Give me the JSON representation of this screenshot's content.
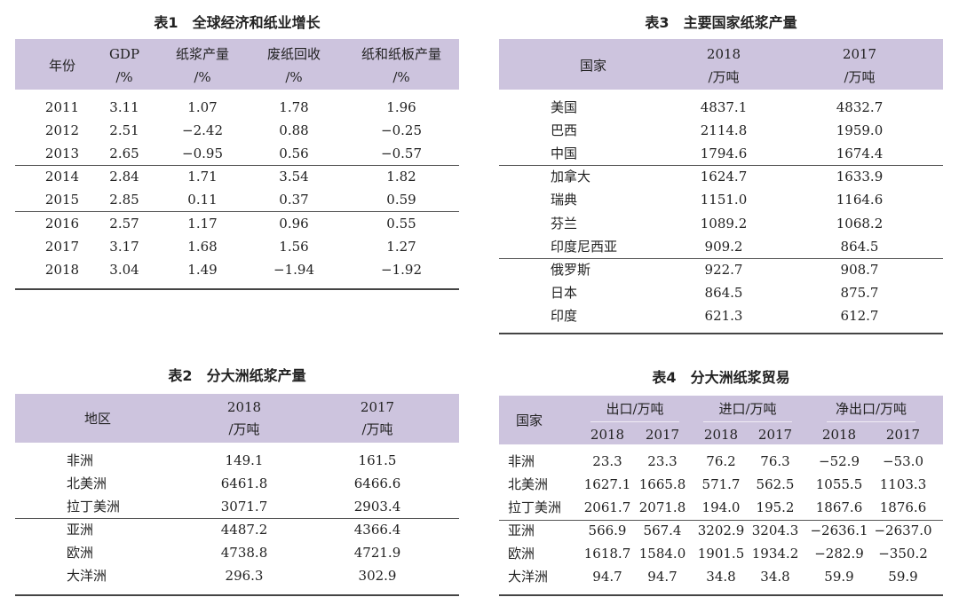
{
  "table1": {
    "title": "表1　全球经济和纸业增长",
    "headers": [
      [
        "年份",
        ""
      ],
      [
        "GDP",
        "/%"
      ],
      [
        "纸浆产量",
        "/%"
      ],
      [
        "废纸回收",
        "/%"
      ],
      [
        "纸和纸板产量",
        "/%"
      ]
    ],
    "rows": [
      [
        "2011",
        "3.11",
        "1.07",
        "1.78",
        "1.96"
      ],
      [
        "2012",
        "2.51",
        "−2.42",
        "0.88",
        "−0.25"
      ],
      [
        "2013",
        "2.65",
        "−0.95",
        "0.56",
        "−0.57"
      ],
      [
        "2014",
        "2.84",
        "1.71",
        "3.54",
        "1.82"
      ],
      [
        "2015",
        "2.85",
        "0.11",
        "0.37",
        "0.59"
      ],
      [
        "2016",
        "2.57",
        "1.17",
        "0.96",
        "0.55"
      ],
      [
        "2017",
        "3.17",
        "1.68",
        "1.56",
        "1.27"
      ],
      [
        "2018",
        "3.04",
        "1.49",
        "−1.94",
        "−1.92"
      ]
    ]
  },
  "table2": {
    "title": "表2　分大洲纸浆产量",
    "headers": [
      [
        "地区",
        ""
      ],
      [
        "2018",
        "/万吨"
      ],
      [
        "2017",
        "/万吨"
      ]
    ],
    "rows": [
      [
        "非洲",
        "149.1",
        "161.5"
      ],
      [
        "北美洲",
        "6461.8",
        "6466.6"
      ],
      [
        "拉丁美洲",
        "3071.7",
        "2903.4"
      ],
      [
        "亚洲",
        "4487.2",
        "4366.4"
      ],
      [
        "欧洲",
        "4738.8",
        "4721.9"
      ],
      [
        "大洋洲",
        "296.3",
        "302.9"
      ]
    ]
  },
  "table3": {
    "title": "表3　主要国家纸浆产量",
    "headers": [
      [
        "国家",
        ""
      ],
      [
        "2018",
        "/万吨"
      ],
      [
        "2017",
        "/万吨"
      ]
    ],
    "rows": [
      [
        "美国",
        "4837.1",
        "4832.7"
      ],
      [
        "巴西",
        "2114.8",
        "1959.0"
      ],
      [
        "中国",
        "1794.6",
        "1674.4"
      ],
      [
        "加拿大",
        "1624.7",
        "1633.9"
      ],
      [
        "瑞典",
        "1151.0",
        "1164.6"
      ],
      [
        "芬兰",
        "1089.2",
        "1068.2"
      ],
      [
        "印度尼西亚",
        "909.2",
        "864.5"
      ],
      [
        "俄罗斯",
        "922.7",
        "908.7"
      ],
      [
        "日本",
        "864.5",
        "875.7"
      ],
      [
        "印度",
        "621.3",
        "612.7"
      ]
    ]
  },
  "table4": {
    "title": "表4　分大洲纸浆贸易",
    "first_header": "国家",
    "groups": [
      "出口/万吨",
      "进口/万吨",
      "净出口/万吨"
    ],
    "years": [
      "2018",
      "2017",
      "2018",
      "2017",
      "2018",
      "2017"
    ],
    "rows": [
      [
        "非洲",
        "23.3",
        "23.3",
        "76.2",
        "76.3",
        "−52.9",
        "−53.0"
      ],
      [
        "北美洲",
        "1627.1",
        "1665.8",
        "571.7",
        "562.5",
        "1055.5",
        "1103.3"
      ],
      [
        "拉丁美洲",
        "2061.7",
        "2071.8",
        "194.0",
        "195.2",
        "1867.6",
        "1876.6"
      ],
      [
        "亚洲",
        "566.9",
        "567.4",
        "3202.9",
        "3204.3",
        "−2636.1",
        "−2637.0"
      ],
      [
        "欧洲",
        "1618.7",
        "1584.0",
        "1901.5",
        "1934.2",
        "−282.9",
        "−350.2"
      ],
      [
        "大洋洲",
        "94.7",
        "94.7",
        "34.8",
        "34.8",
        "59.9",
        "59.9"
      ]
    ]
  },
  "colors": {
    "header_bg": "#cdc4de",
    "rule": "#555555"
  }
}
